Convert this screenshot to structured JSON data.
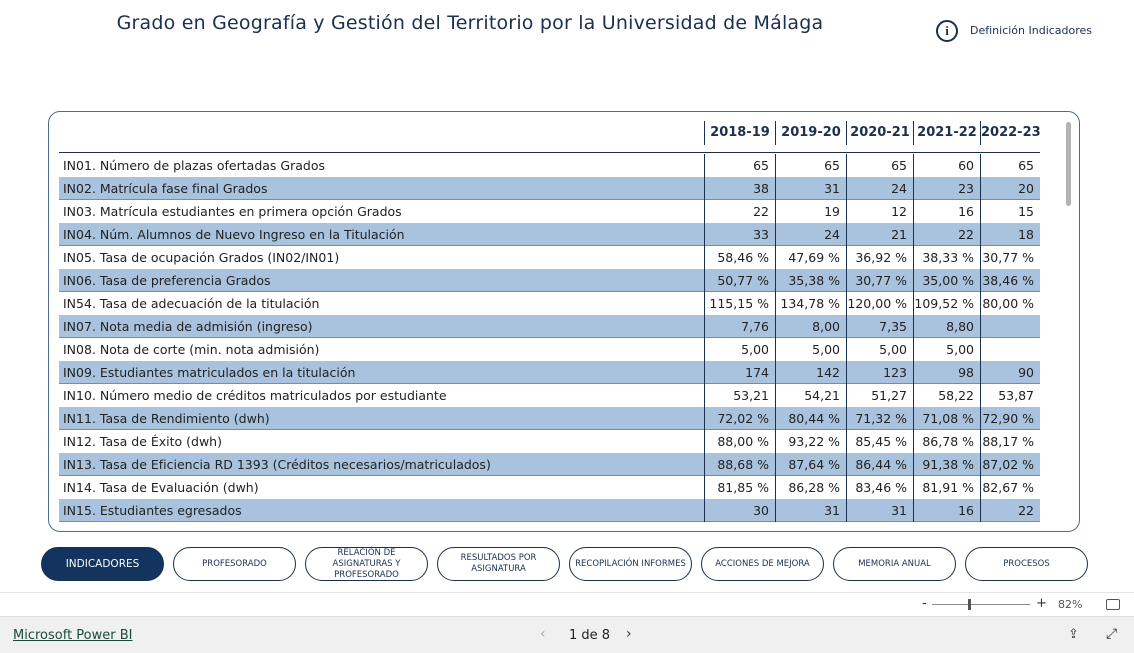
{
  "header": {
    "title": "Grado en Geografía y Gestión del Territorio por la Universidad de Málaga",
    "info_link": "Definición Indicadores"
  },
  "table": {
    "columns": [
      "2018-19",
      "2019-20",
      "2020-21",
      "2021-22",
      "2022-23"
    ],
    "rows": [
      [
        "IN01. Número de plazas ofertadas Grados",
        "65",
        "65",
        "65",
        "60",
        "65"
      ],
      [
        "IN02. Matrícula fase final Grados",
        "38",
        "31",
        "24",
        "23",
        "20"
      ],
      [
        "IN03. Matrícula estudiantes en primera opción Grados",
        "22",
        "19",
        "12",
        "16",
        "15"
      ],
      [
        "IN04. Núm. Alumnos de Nuevo Ingreso en la Titulación",
        "33",
        "24",
        "21",
        "22",
        "18"
      ],
      [
        "IN05. Tasa de ocupación Grados (IN02/IN01)",
        "58,46 %",
        "47,69 %",
        "36,92 %",
        "38,33 %",
        "30,77 %"
      ],
      [
        "IN06. Tasa de preferencia Grados",
        "50,77 %",
        "35,38 %",
        "30,77 %",
        "35,00 %",
        "38,46 %"
      ],
      [
        "IN54. Tasa de adecuación de la titulación",
        "115,15 %",
        "134,78 %",
        "120,00 %",
        "109,52 %",
        "80,00 %"
      ],
      [
        "IN07. Nota media de admisión (ingreso)",
        "7,76",
        "8,00",
        "7,35",
        "8,80",
        null
      ],
      [
        "IN08. Nota de corte (min. nota admisión)",
        "5,00",
        "5,00",
        "5,00",
        "5,00",
        null
      ],
      [
        "IN09. Estudiantes matriculados en la titulación",
        "174",
        "142",
        "123",
        "98",
        "90"
      ],
      [
        "IN10. Número medio de créditos matriculados por estudiante",
        "53,21",
        "54,21",
        "51,27",
        "58,22",
        "53,87"
      ],
      [
        "IN11. Tasa de Rendimiento (dwh)",
        "72,02 %",
        "80,44 %",
        "71,32 %",
        "71,08 %",
        "72,90 %"
      ],
      [
        "IN12. Tasa de Éxito (dwh)",
        "88,00 %",
        "93,22 %",
        "85,45 %",
        "86,78 %",
        "88,17 %"
      ],
      [
        "IN13. Tasa de Eficiencia RD 1393 (Créditos necesarios/matriculados)",
        "88,68 %",
        "87,64 %",
        "86,44 %",
        "91,38 %",
        "87,02 %"
      ],
      [
        "IN14. Tasa de Evaluación (dwh)",
        "81,85 %",
        "86,28 %",
        "83,46 %",
        "81,91 %",
        "82,67 %"
      ],
      [
        "IN15. Estudiantes egresados",
        "30",
        "31",
        "31",
        "16",
        "22"
      ]
    ]
  },
  "tabs": [
    "INDICADORES",
    "PROFESORADO",
    "RELACIÓN DE ASIGNATURAS Y PROFESORADO",
    "RESULTADOS POR ASIGNATURA",
    "RECOPILACIÓN INFORMES",
    "ACCIONES DE MEJORA",
    "MEMORIA ANUAL",
    "PROCESOS"
  ],
  "zoom": {
    "minus": "-",
    "plus": "+",
    "level": "82%"
  },
  "footer": {
    "brand": "Microsoft Power BI",
    "page": "1 de 8"
  }
}
